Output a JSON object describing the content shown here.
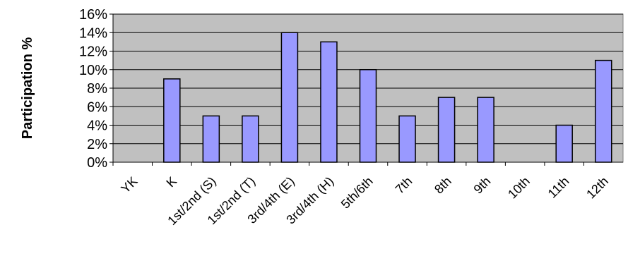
{
  "chart_data": {
    "type": "bar",
    "title": "",
    "xlabel": "",
    "ylabel": "Participation %",
    "ylim": [
      0,
      16
    ],
    "yticks": [
      "0%",
      "2%",
      "4%",
      "6%",
      "8%",
      "10%",
      "12%",
      "14%",
      "16%"
    ],
    "categories": [
      "YK",
      "K",
      "1st/2nd (S)",
      "1st/2nd (T)",
      "3rd/4th (E)",
      "3rd/4th (H)",
      "5th/6th",
      "7th",
      "8th",
      "9th",
      "10th",
      "11th",
      "12th"
    ],
    "values": [
      0,
      9,
      5,
      5,
      14,
      13,
      10,
      5,
      7,
      7,
      0,
      4,
      11
    ],
    "colors": {
      "plot_background": "#c0c0c0",
      "bar_fill": "#9999ff",
      "bar_stroke": "#000000",
      "gridline": "#000000"
    },
    "grid": true
  }
}
